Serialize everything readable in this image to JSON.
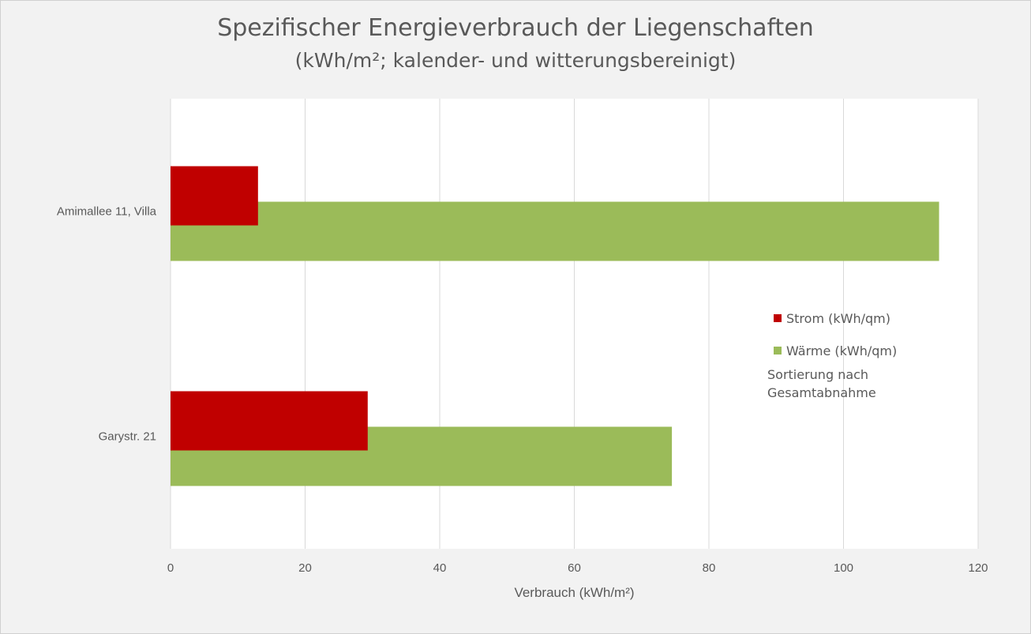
{
  "chart_data": {
    "type": "bar",
    "orientation": "horizontal",
    "title": "Spezifischer Energieverbrauch der Liegenschaften",
    "subtitle": "(kWh/m²; kalender- und witterungsbereinigt)",
    "categories": [
      "Amimallee 11, Villa",
      "Garystr. 21"
    ],
    "series": [
      {
        "name": "Strom (kWh/qm)",
        "color": "#c00000",
        "values": [
          13,
          29.3
        ]
      },
      {
        "name": "Wärme (kWh/qm)",
        "color": "#9bbb59",
        "values": [
          114.2,
          74.5
        ]
      }
    ],
    "xlabel": "Verbrauch (kWh/m²)",
    "xlim": [
      0,
      120
    ],
    "xticks": [
      0,
      20,
      40,
      60,
      80,
      100,
      120
    ],
    "grid": true,
    "legend_position": "right",
    "note": "Sortierung nach Gesamtabnahme"
  }
}
